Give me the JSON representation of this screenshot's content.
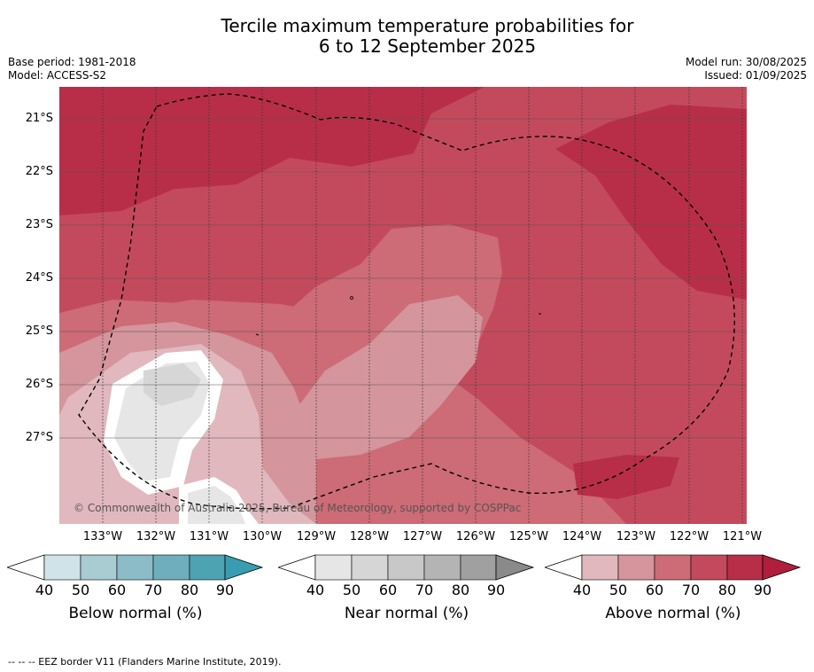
{
  "title_line1": "Tercile maximum temperature probabilities for",
  "title_line2": "6 to 12 September 2025",
  "base_period": "Base period: 1981-2018",
  "model": "Model: ACCESS-S2",
  "model_run": "Model run: 30/08/2025",
  "issued": "Issued: 01/09/2025",
  "lat_labels": [
    "21°S",
    "22°S",
    "23°S",
    "24°S",
    "25°S",
    "26°S",
    "27°S"
  ],
  "lon_labels": [
    "133°W",
    "132°W",
    "131°W",
    "130°W",
    "129°W",
    "128°W",
    "127°W",
    "126°W",
    "125°W",
    "124°W",
    "123°W",
    "122°W",
    "121°W"
  ],
  "credit": "© Commonwealth of Australia 2025, Bureau of Meteorology, supported by COSPPac",
  "legends": [
    {
      "title": "Below normal (%)",
      "ticks": [
        "40",
        "50",
        "60",
        "70",
        "80",
        "90"
      ],
      "colors": [
        "#cfe3e8",
        "#a9cbd2",
        "#8bbcc7",
        "#6fafbd",
        "#4ea3b2"
      ],
      "over": "#3a9cb0"
    },
    {
      "title": "Near normal (%)",
      "ticks": [
        "40",
        "50",
        "60",
        "70",
        "80",
        "90"
      ],
      "colors": [
        "#e6e6e6",
        "#d6d6d6",
        "#c8c8c8",
        "#b4b4b4",
        "#a0a0a0"
      ],
      "over": "#8a8a8a"
    },
    {
      "title": "Above normal (%)",
      "ticks": [
        "40",
        "50",
        "60",
        "70",
        "80",
        "90"
      ],
      "colors": [
        "#e0b8bd",
        "#d4959c",
        "#cd6b76",
        "#c34a5c",
        "#b82e48"
      ],
      "over": "#b01e3c"
    }
  ],
  "footer": "--  --  -- EEZ border V11 (Flanders Marine Institute, 2019).",
  "colors": {
    "above_80": "#b82e48",
    "above_70": "#c34a5c",
    "above_60": "#cd6b76",
    "above_50": "#d4959c",
    "above_40": "#e0b8bd",
    "near_40": "#e6e6e6",
    "near_50": "#d6d6d6"
  }
}
